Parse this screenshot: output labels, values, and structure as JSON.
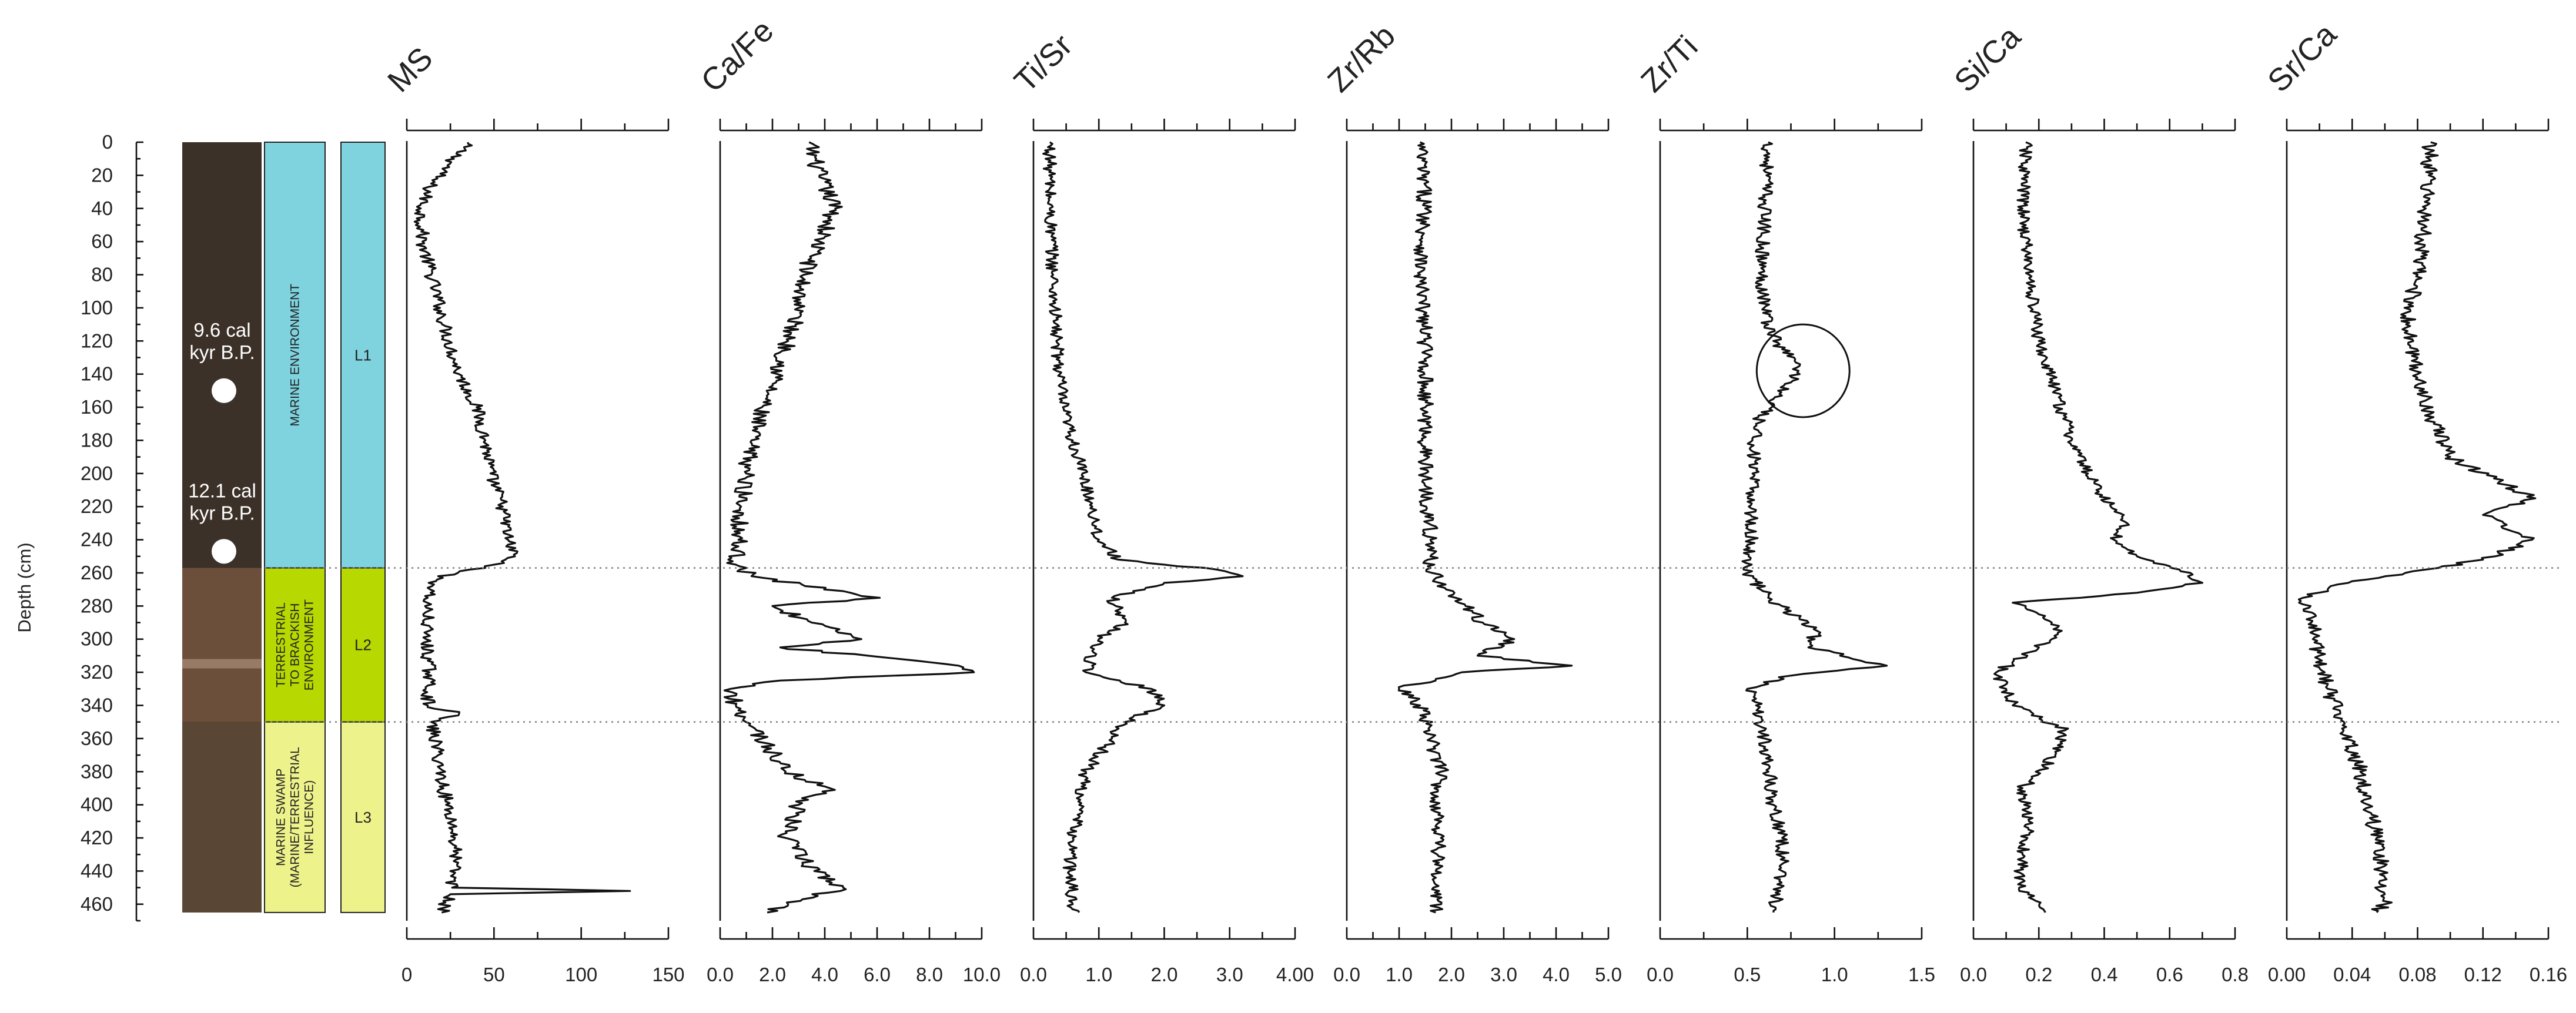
{
  "chart_data": {
    "type": "line",
    "depth_axis": {
      "label": "Depth (cm)",
      "range": [
        0,
        470
      ],
      "ticks": [
        0,
        20,
        40,
        60,
        80,
        100,
        120,
        140,
        160,
        180,
        200,
        220,
        240,
        260,
        280,
        300,
        320,
        340,
        360,
        380,
        400,
        420,
        440,
        460
      ]
    },
    "core_image": {
      "ages": [
        {
          "line1": "9.6 cal",
          "line2": "kyr B.P.",
          "depth": 150
        },
        {
          "line1": "12.1 cal",
          "line2": "kyr B.P.",
          "depth": 247
        }
      ],
      "colors": {
        "upper": "#3b3128",
        "lower_band": "#6b4f3a",
        "base": "#5a4634"
      }
    },
    "environments": [
      {
        "text": [
          "MARINE ENVIRONMENT"
        ],
        "top": 0,
        "bottom": 257,
        "color": "#7fd3df"
      },
      {
        "text": [
          "TERRESTRIAL",
          "TO BRACKISH",
          "ENVIRONMENT"
        ],
        "top": 257,
        "bottom": 350,
        "color": "#b7d800"
      },
      {
        "text": [
          "MARINE SWAMP",
          "(MARINE/TERRESTRIAL",
          "INFLUENCE)"
        ],
        "top": 350,
        "bottom": 465,
        "color": "#eef28a"
      }
    ],
    "units": [
      {
        "label": "L1",
        "top": 0,
        "bottom": 257,
        "color": "#7fd3df"
      },
      {
        "label": "L2",
        "top": 257,
        "bottom": 350,
        "color": "#b7d800"
      },
      {
        "label": "L3",
        "top": 350,
        "bottom": 465,
        "color": "#eef28a"
      }
    ],
    "boundaries": [
      257,
      350
    ],
    "annotations": [
      {
        "type": "circle",
        "series": "Zr/Ti",
        "center": [
          0.82,
          138
        ],
        "radius_depth": 28
      }
    ],
    "series": [
      {
        "name": "MS",
        "xlim": [
          0,
          150
        ],
        "ticks": [
          "0",
          "50",
          "100",
          "150"
        ],
        "tick_values": [
          0,
          50,
          100,
          150
        ],
        "minor": 25,
        "profile": [
          [
            0,
            35
          ],
          [
            10,
            27
          ],
          [
            25,
            14
          ],
          [
            40,
            8
          ],
          [
            60,
            9
          ],
          [
            80,
            14
          ],
          [
            100,
            19
          ],
          [
            120,
            24
          ],
          [
            140,
            30
          ],
          [
            160,
            40
          ],
          [
            180,
            45
          ],
          [
            200,
            48
          ],
          [
            220,
            55
          ],
          [
            240,
            58
          ],
          [
            250,
            62
          ],
          [
            257,
            45
          ],
          [
            262,
            18
          ],
          [
            275,
            12
          ],
          [
            300,
            11
          ],
          [
            320,
            13
          ],
          [
            340,
            12
          ],
          [
            345,
            30
          ],
          [
            350,
            14
          ],
          [
            370,
            18
          ],
          [
            390,
            21
          ],
          [
            410,
            26
          ],
          [
            430,
            28
          ],
          [
            450,
            26
          ],
          [
            452,
            128
          ],
          [
            454,
            25
          ],
          [
            465,
            20
          ]
        ],
        "noise": 4
      },
      {
        "name": "Ca/Fe",
        "xlim": [
          0,
          10
        ],
        "ticks": [
          "0.0",
          "2.0",
          "4.0",
          "6.0",
          "8.0",
          "10.0"
        ],
        "tick_values": [
          0,
          2,
          4,
          6,
          8,
          10
        ],
        "minor": 1,
        "profile": [
          [
            0,
            3.4
          ],
          [
            20,
            3.8
          ],
          [
            40,
            4.4
          ],
          [
            60,
            3.8
          ],
          [
            80,
            3.2
          ],
          [
            100,
            3.0
          ],
          [
            120,
            2.6
          ],
          [
            140,
            2.2
          ],
          [
            160,
            1.6
          ],
          [
            180,
            1.2
          ],
          [
            200,
            1.0
          ],
          [
            220,
            0.8
          ],
          [
            240,
            0.7
          ],
          [
            255,
            0.6
          ],
          [
            262,
            1.2
          ],
          [
            275,
            6.1
          ],
          [
            280,
            2.0
          ],
          [
            290,
            3.5
          ],
          [
            300,
            5.4
          ],
          [
            305,
            2.3
          ],
          [
            315,
            8.6
          ],
          [
            320,
            9.7
          ],
          [
            325,
            2.3
          ],
          [
            330,
            0.4
          ],
          [
            340,
            0.6
          ],
          [
            360,
            1.6
          ],
          [
            380,
            2.5
          ],
          [
            390,
            4.2
          ],
          [
            400,
            3.0
          ],
          [
            420,
            2.5
          ],
          [
            440,
            3.6
          ],
          [
            450,
            4.7
          ],
          [
            460,
            2.6
          ],
          [
            465,
            1.8
          ]
        ],
        "noise": 0.35
      },
      {
        "name": "Ti/Sr",
        "xlim": [
          0,
          4
        ],
        "ticks": [
          "0.0",
          "1.0",
          "2.0",
          "3.0",
          "4.00"
        ],
        "tick_values": [
          0,
          1,
          2,
          3,
          4
        ],
        "minor": 0.5,
        "profile": [
          [
            0,
            0.25
          ],
          [
            40,
            0.25
          ],
          [
            80,
            0.3
          ],
          [
            120,
            0.35
          ],
          [
            160,
            0.45
          ],
          [
            180,
            0.6
          ],
          [
            200,
            0.75
          ],
          [
            220,
            0.9
          ],
          [
            240,
            1.0
          ],
          [
            252,
            1.3
          ],
          [
            258,
            2.8
          ],
          [
            262,
            3.2
          ],
          [
            266,
            2.0
          ],
          [
            275,
            1.2
          ],
          [
            290,
            1.4
          ],
          [
            300,
            1.0
          ],
          [
            320,
            0.8
          ],
          [
            330,
            1.8
          ],
          [
            340,
            2.0
          ],
          [
            350,
            1.4
          ],
          [
            360,
            1.2
          ],
          [
            380,
            0.8
          ],
          [
            400,
            0.7
          ],
          [
            420,
            0.6
          ],
          [
            440,
            0.55
          ],
          [
            460,
            0.6
          ],
          [
            465,
            0.7
          ]
        ],
        "noise": 0.1
      },
      {
        "name": "Zr/Rb",
        "xlim": [
          0,
          5
        ],
        "ticks": [
          "0.0",
          "1.0",
          "2.0",
          "3.0",
          "4.0",
          "5.0"
        ],
        "tick_values": [
          0,
          1,
          2,
          3,
          4,
          5
        ],
        "minor": 0.5,
        "profile": [
          [
            0,
            1.4
          ],
          [
            40,
            1.5
          ],
          [
            80,
            1.4
          ],
          [
            120,
            1.5
          ],
          [
            160,
            1.5
          ],
          [
            200,
            1.5
          ],
          [
            240,
            1.6
          ],
          [
            257,
            1.6
          ],
          [
            270,
            1.9
          ],
          [
            290,
            2.6
          ],
          [
            300,
            3.2
          ],
          [
            310,
            2.5
          ],
          [
            316,
            4.3
          ],
          [
            320,
            2.2
          ],
          [
            330,
            1.0
          ],
          [
            340,
            1.4
          ],
          [
            360,
            1.6
          ],
          [
            380,
            1.8
          ],
          [
            400,
            1.7
          ],
          [
            420,
            1.8
          ],
          [
            440,
            1.7
          ],
          [
            465,
            1.7
          ]
        ],
        "noise": 0.15
      },
      {
        "name": "Zr/Ti",
        "xlim": [
          0,
          1.5
        ],
        "ticks": [
          "0.0",
          "0.5",
          "1.0",
          "1.5"
        ],
        "tick_values": [
          0,
          0.5,
          1.0,
          1.5
        ],
        "minor": 0.25,
        "profile": [
          [
            0,
            0.62
          ],
          [
            40,
            0.6
          ],
          [
            80,
            0.58
          ],
          [
            110,
            0.62
          ],
          [
            125,
            0.7
          ],
          [
            135,
            0.8
          ],
          [
            145,
            0.75
          ],
          [
            155,
            0.65
          ],
          [
            170,
            0.55
          ],
          [
            200,
            0.53
          ],
          [
            240,
            0.52
          ],
          [
            260,
            0.5
          ],
          [
            275,
            0.62
          ],
          [
            295,
            0.9
          ],
          [
            305,
            0.85
          ],
          [
            316,
            1.3
          ],
          [
            322,
            0.75
          ],
          [
            330,
            0.5
          ],
          [
            340,
            0.55
          ],
          [
            360,
            0.6
          ],
          [
            400,
            0.65
          ],
          [
            420,
            0.7
          ],
          [
            440,
            0.7
          ],
          [
            465,
            0.65
          ]
        ],
        "noise": 0.04
      },
      {
        "name": "Si/Ca",
        "xlim": [
          0,
          0.8
        ],
        "ticks": [
          "0.0",
          "0.2",
          "0.4",
          "0.6",
          "0.8"
        ],
        "tick_values": [
          0,
          0.2,
          0.4,
          0.6,
          0.8
        ],
        "minor": 0.1,
        "profile": [
          [
            0,
            0.16
          ],
          [
            40,
            0.15
          ],
          [
            80,
            0.17
          ],
          [
            120,
            0.2
          ],
          [
            150,
            0.25
          ],
          [
            180,
            0.3
          ],
          [
            200,
            0.35
          ],
          [
            220,
            0.42
          ],
          [
            230,
            0.47
          ],
          [
            240,
            0.43
          ],
          [
            250,
            0.5
          ],
          [
            258,
            0.63
          ],
          [
            266,
            0.7
          ],
          [
            272,
            0.5
          ],
          [
            278,
            0.12
          ],
          [
            285,
            0.2
          ],
          [
            295,
            0.27
          ],
          [
            305,
            0.2
          ],
          [
            320,
            0.07
          ],
          [
            340,
            0.12
          ],
          [
            355,
            0.28
          ],
          [
            370,
            0.25
          ],
          [
            390,
            0.15
          ],
          [
            410,
            0.17
          ],
          [
            430,
            0.15
          ],
          [
            450,
            0.14
          ],
          [
            465,
            0.22
          ]
        ],
        "noise": 0.02
      },
      {
        "name": "Sr/Ca",
        "xlim": [
          0,
          0.16
        ],
        "ticks": [
          "0.00",
          "0.04",
          "0.08",
          "0.12",
          "0.16"
        ],
        "tick_values": [
          0,
          0.04,
          0.08,
          0.12,
          0.16
        ],
        "minor": 0.02,
        "profile": [
          [
            0,
            0.088
          ],
          [
            40,
            0.085
          ],
          [
            80,
            0.08
          ],
          [
            110,
            0.073
          ],
          [
            140,
            0.08
          ],
          [
            170,
            0.09
          ],
          [
            190,
            0.1
          ],
          [
            205,
            0.13
          ],
          [
            215,
            0.152
          ],
          [
            225,
            0.12
          ],
          [
            240,
            0.15
          ],
          [
            252,
            0.12
          ],
          [
            258,
            0.085
          ],
          [
            265,
            0.04
          ],
          [
            275,
            0.01
          ],
          [
            290,
            0.015
          ],
          [
            310,
            0.02
          ],
          [
            330,
            0.025
          ],
          [
            350,
            0.035
          ],
          [
            380,
            0.045
          ],
          [
            400,
            0.05
          ],
          [
            420,
            0.055
          ],
          [
            440,
            0.058
          ],
          [
            460,
            0.06
          ],
          [
            465,
            0.055
          ]
        ],
        "noise": 0.005
      }
    ]
  }
}
